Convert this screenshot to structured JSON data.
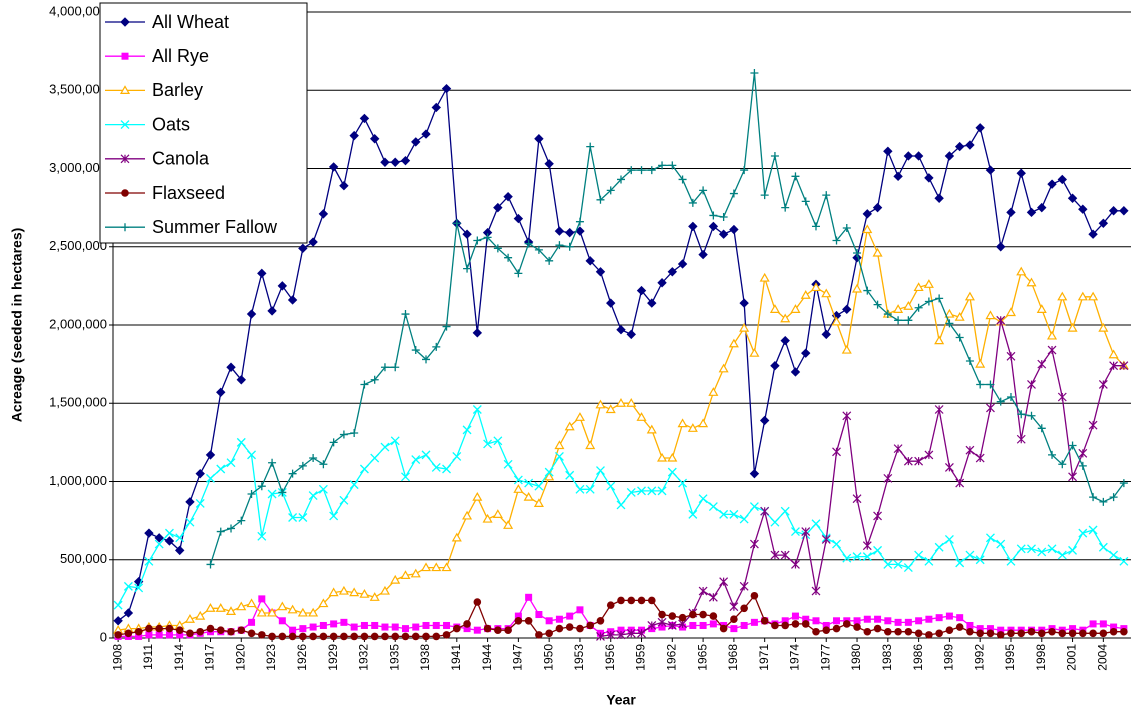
{
  "chart_data": {
    "type": "line",
    "xlabel": "Year",
    "ylabel": "Acreage (seeded in hectares)",
    "legend": "upper left",
    "grid": true,
    "ylim": [
      0,
      4000000
    ],
    "yticks": [
      0,
      {
        "value": 500000,
        "label": "500,000"
      },
      {
        "value": 1000000,
        "label": "1,000,000"
      },
      {
        "value": 1500000,
        "label": "1,500,000"
      },
      {
        "value": 2000000,
        "label": "2,000,000"
      },
      {
        "value": 2500000,
        "label": "2,500,000"
      },
      {
        "value": 3000000,
        "label": "3,000,000"
      },
      {
        "value": 3500000,
        "label": "3,500,000"
      },
      {
        "value": 4000000,
        "label": "4,000,000"
      }
    ],
    "categories": [
      "1908",
      null,
      null,
      "1911",
      null,
      null,
      "1914",
      null,
      null,
      "1917",
      null,
      null,
      "1920",
      null,
      null,
      "1923",
      null,
      null,
      "1926",
      null,
      null,
      "1929",
      null,
      null,
      "1932",
      null,
      null,
      "1935",
      null,
      null,
      "1938",
      null,
      null,
      "1941",
      null,
      null,
      "1944",
      null,
      null,
      "1947",
      null,
      null,
      "1950",
      null,
      null,
      "1953",
      null,
      null,
      "1956",
      null,
      null,
      "1959",
      null,
      null,
      "1962",
      null,
      null,
      "1965",
      null,
      null,
      "1968",
      null,
      null,
      "1971",
      null,
      null,
      "1974",
      null,
      null,
      "1977",
      null,
      null,
      "1980",
      null,
      null,
      "1983",
      null,
      null,
      "1986",
      null,
      null,
      "1989",
      null,
      null,
      "1992",
      null,
      null,
      "1995",
      null,
      null,
      "1998",
      null,
      null,
      "2001",
      null,
      null,
      "2004",
      null,
      null
    ],
    "series": [
      {
        "name": "All Wheat",
        "color": "#000080",
        "marker": "diamond",
        "values": [
          110000,
          160000,
          360000,
          670000,
          640000,
          620000,
          560000,
          870000,
          1050000,
          1170000,
          1570000,
          1730000,
          1650000,
          2070000,
          2330000,
          2090000,
          2250000,
          2160000,
          2490000,
          2530000,
          2710000,
          3010000,
          2890000,
          3210000,
          3320000,
          3190000,
          3040000,
          3040000,
          3050000,
          3170000,
          3220000,
          3390000,
          3510000,
          2650000,
          2580000,
          1950000,
          2590000,
          2750000,
          2820000,
          2680000,
          2530000,
          3190000,
          3030000,
          2600000,
          2590000,
          2600000,
          2410000,
          2340000,
          2140000,
          1970000,
          1940000,
          2220000,
          2140000,
          2270000,
          2340000,
          2390000,
          2630000,
          2450000,
          2630000,
          2580000,
          2610000,
          2140000,
          1050000,
          1390000,
          1740000,
          1900000,
          1700000,
          1820000,
          2260000,
          1940000,
          2060000,
          2100000,
          2430000,
          2710000,
          2750000,
          3110000,
          2950000,
          3080000,
          3080000,
          2940000,
          2810000,
          3080000,
          3140000,
          3150000,
          3260000,
          2990000,
          2500000,
          2720000,
          2970000,
          2720000,
          2750000,
          2900000,
          2930000,
          2810000,
          2740000,
          2580000,
          2650000,
          2730000,
          2730000
        ]
      },
      {
        "name": "All Rye",
        "color": "#ff00ff",
        "marker": "square",
        "values": [
          10000,
          10000,
          10000,
          20000,
          20000,
          20000,
          20000,
          20000,
          30000,
          40000,
          40000,
          40000,
          50000,
          100000,
          250000,
          160000,
          110000,
          50000,
          60000,
          70000,
          80000,
          90000,
          100000,
          70000,
          80000,
          80000,
          70000,
          70000,
          60000,
          70000,
          80000,
          80000,
          80000,
          70000,
          60000,
          50000,
          60000,
          60000,
          60000,
          140000,
          260000,
          150000,
          110000,
          120000,
          140000,
          180000,
          80000,
          30000,
          40000,
          50000,
          50000,
          50000,
          60000,
          70000,
          80000,
          70000,
          80000,
          80000,
          90000,
          80000,
          60000,
          80000,
          100000,
          110000,
          90000,
          110000,
          140000,
          120000,
          110000,
          80000,
          110000,
          110000,
          110000,
          120000,
          120000,
          110000,
          100000,
          100000,
          110000,
          120000,
          130000,
          140000,
          130000,
          80000,
          60000,
          60000,
          50000,
          50000,
          50000,
          50000,
          50000,
          60000,
          50000,
          60000,
          50000,
          90000,
          90000,
          70000,
          60000
        ]
      },
      {
        "name": "Barley",
        "color": "#ffb000",
        "marker": "triangle",
        "values": [
          50000,
          60000,
          60000,
          70000,
          70000,
          80000,
          80000,
          120000,
          140000,
          190000,
          190000,
          170000,
          200000,
          220000,
          160000,
          160000,
          200000,
          180000,
          160000,
          160000,
          220000,
          290000,
          300000,
          290000,
          280000,
          260000,
          300000,
          370000,
          400000,
          410000,
          450000,
          450000,
          450000,
          640000,
          780000,
          900000,
          760000,
          790000,
          720000,
          950000,
          900000,
          860000,
          1030000,
          1230000,
          1350000,
          1410000,
          1230000,
          1490000,
          1460000,
          1500000,
          1500000,
          1410000,
          1330000,
          1150000,
          1150000,
          1370000,
          1340000,
          1370000,
          1570000,
          1720000,
          1880000,
          1980000,
          1820000,
          2300000,
          2100000,
          2040000,
          2100000,
          2190000,
          2240000,
          2200000,
          2020000,
          1840000,
          2230000,
          2610000,
          2460000,
          2070000,
          2100000,
          2120000,
          2240000,
          2260000,
          1900000,
          2070000,
          2050000,
          2180000,
          1750000,
          2060000,
          2020000,
          2080000,
          2340000,
          2270000,
          2100000,
          1930000,
          2180000,
          1980000,
          2180000,
          2180000,
          1980000,
          1810000,
          1740000
        ]
      },
      {
        "name": "Oats",
        "color": "#00ffff",
        "marker": "x",
        "values": [
          210000,
          330000,
          320000,
          490000,
          600000,
          670000,
          640000,
          740000,
          860000,
          1020000,
          1080000,
          1120000,
          1250000,
          1170000,
          650000,
          920000,
          930000,
          770000,
          770000,
          910000,
          950000,
          780000,
          880000,
          980000,
          1080000,
          1150000,
          1220000,
          1260000,
          1030000,
          1140000,
          1170000,
          1090000,
          1080000,
          1160000,
          1330000,
          1460000,
          1240000,
          1260000,
          1110000,
          1010000,
          990000,
          970000,
          1060000,
          1160000,
          1040000,
          950000,
          950000,
          1070000,
          970000,
          850000,
          930000,
          940000,
          940000,
          940000,
          1060000,
          990000,
          790000,
          890000,
          840000,
          790000,
          790000,
          760000,
          840000,
          810000,
          740000,
          810000,
          680000,
          660000,
          730000,
          640000,
          600000,
          510000,
          520000,
          520000,
          560000,
          470000,
          470000,
          450000,
          530000,
          490000,
          580000,
          630000,
          480000,
          530000,
          500000,
          640000,
          600000,
          490000,
          570000,
          570000,
          550000,
          570000,
          530000,
          560000,
          670000,
          690000,
          580000,
          530000,
          490000
        ]
      },
      {
        "name": "Canola",
        "color": "#800080",
        "marker": "star",
        "values": [
          null,
          null,
          null,
          null,
          null,
          null,
          null,
          null,
          null,
          null,
          null,
          null,
          null,
          null,
          null,
          null,
          null,
          null,
          null,
          null,
          null,
          null,
          null,
          null,
          null,
          null,
          null,
          null,
          null,
          null,
          null,
          null,
          null,
          null,
          null,
          null,
          null,
          null,
          null,
          null,
          null,
          null,
          null,
          null,
          null,
          null,
          null,
          10000,
          20000,
          20000,
          30000,
          30000,
          80000,
          100000,
          80000,
          90000,
          160000,
          300000,
          260000,
          360000,
          200000,
          330000,
          600000,
          810000,
          530000,
          530000,
          470000,
          680000,
          300000,
          630000,
          1190000,
          1420000,
          890000,
          590000,
          780000,
          1020000,
          1210000,
          1130000,
          1130000,
          1170000,
          1460000,
          1090000,
          990000,
          1200000,
          1150000,
          1470000,
          2030000,
          1800000,
          1270000,
          1620000,
          1750000,
          1840000,
          1540000,
          1030000,
          1180000,
          1360000,
          1620000,
          1740000,
          1740000
        ]
      },
      {
        "name": "Flaxseed",
        "color": "#800000",
        "marker": "circle",
        "values": [
          20000,
          30000,
          40000,
          60000,
          60000,
          60000,
          50000,
          30000,
          40000,
          60000,
          50000,
          40000,
          50000,
          30000,
          20000,
          10000,
          10000,
          10000,
          10000,
          10000,
          10000,
          10000,
          10000,
          10000,
          10000,
          10000,
          10000,
          10000,
          10000,
          10000,
          10000,
          10000,
          20000,
          60000,
          90000,
          230000,
          60000,
          50000,
          50000,
          110000,
          110000,
          20000,
          30000,
          60000,
          70000,
          60000,
          80000,
          110000,
          210000,
          240000,
          240000,
          240000,
          240000,
          150000,
          140000,
          130000,
          150000,
          150000,
          140000,
          60000,
          120000,
          190000,
          270000,
          110000,
          80000,
          80000,
          90000,
          90000,
          40000,
          50000,
          60000,
          90000,
          70000,
          40000,
          60000,
          40000,
          40000,
          40000,
          30000,
          20000,
          30000,
          50000,
          70000,
          40000,
          30000,
          30000,
          20000,
          30000,
          30000,
          40000,
          30000,
          40000,
          30000,
          30000,
          30000,
          30000,
          30000,
          40000,
          40000
        ]
      },
      {
        "name": "Summer Fallow",
        "color": "#008080",
        "marker": "plus",
        "values": [
          null,
          null,
          null,
          null,
          null,
          null,
          null,
          null,
          null,
          470000,
          680000,
          700000,
          750000,
          920000,
          970000,
          1120000,
          930000,
          1050000,
          1100000,
          1150000,
          1110000,
          1250000,
          1300000,
          1310000,
          1620000,
          1650000,
          1730000,
          1730000,
          2070000,
          1840000,
          1780000,
          1860000,
          1990000,
          2650000,
          2360000,
          2540000,
          2560000,
          2490000,
          2430000,
          2330000,
          2520000,
          2480000,
          2410000,
          2510000,
          2500000,
          2660000,
          3140000,
          2800000,
          2860000,
          2930000,
          2990000,
          2990000,
          2990000,
          3020000,
          3020000,
          2930000,
          2780000,
          2860000,
          2700000,
          2690000,
          2840000,
          2990000,
          3610000,
          2830000,
          3080000,
          2750000,
          2950000,
          2790000,
          2630000,
          2830000,
          2540000,
          2620000,
          2460000,
          2220000,
          2130000,
          2070000,
          2030000,
          2030000,
          2110000,
          2150000,
          2170000,
          2010000,
          1920000,
          1770000,
          1620000,
          1620000,
          1510000,
          1540000,
          1430000,
          1420000,
          1340000,
          1170000,
          1110000,
          1230000,
          1100000,
          900000,
          870000,
          900000,
          990000
        ]
      }
    ]
  }
}
